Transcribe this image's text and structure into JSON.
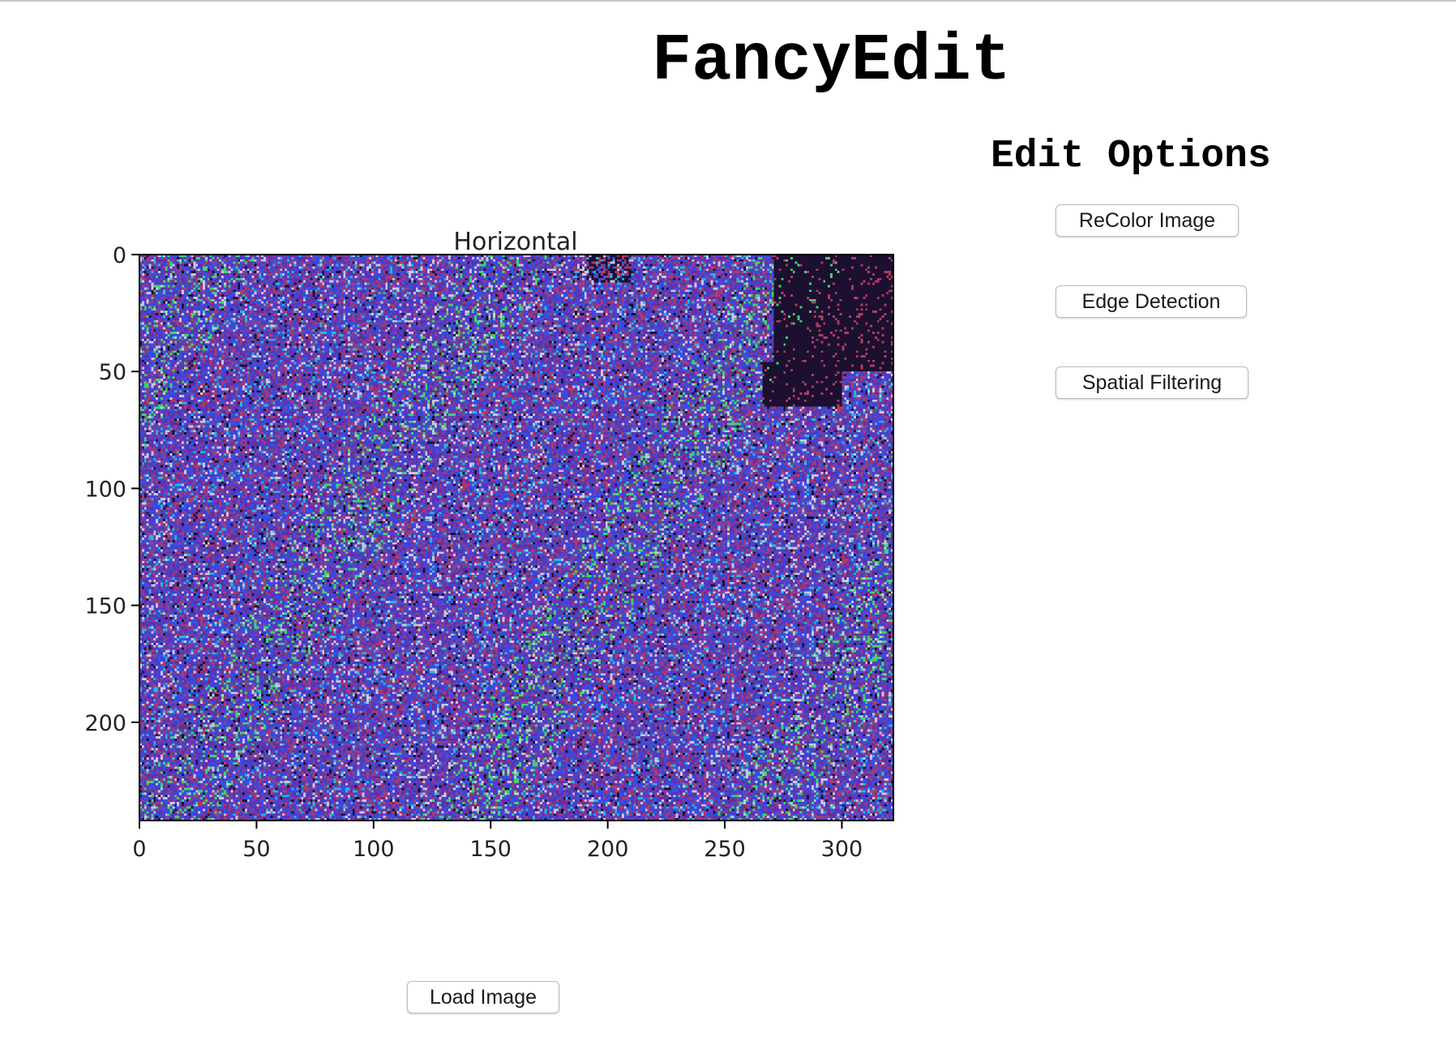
{
  "app": {
    "title": "FancyEdit"
  },
  "edit_panel": {
    "title": "Edit Options",
    "buttons": {
      "recolor": "ReColor Image",
      "edge": "Edge Detection",
      "spatial": "Spatial Filtering"
    }
  },
  "load_button": "Load Image",
  "chart_data": {
    "type": "heatmap",
    "title": "Horizontal",
    "image_width": 322,
    "image_height": 242,
    "xlim": [
      0,
      322
    ],
    "ylim": [
      242,
      0
    ],
    "x_ticks": [
      0,
      50,
      100,
      150,
      200,
      250,
      300
    ],
    "y_ticks": [
      0,
      50,
      100,
      150,
      200
    ],
    "grid": false,
    "colors": [
      "#4a3fd0",
      "#6a2c9a",
      "#2f52e8",
      "#8a3d8d",
      "#c8c6e6",
      "#2ab4d8",
      "#3fd36f",
      "#b23a62",
      "#1b1030"
    ]
  }
}
